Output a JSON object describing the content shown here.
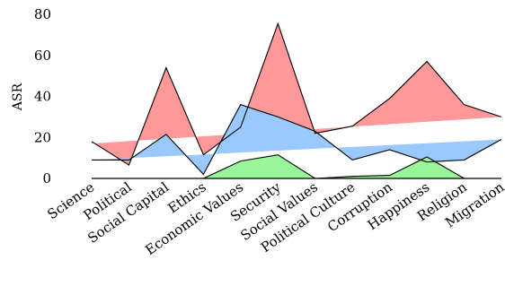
{
  "chart_data": {
    "type": "area",
    "categories": [
      "Science",
      "Political",
      "Social Capital",
      "Ethics",
      "Economic Values",
      "Security",
      "Social Values",
      "Political Culture",
      "Corruption",
      "Happiness",
      "Religion",
      "Migration"
    ],
    "ylabel": "ASR",
    "xlabel": "",
    "title": "",
    "ylim": [
      0,
      80
    ],
    "yticks": [
      0,
      20,
      40,
      60,
      80
    ],
    "grid": false,
    "legend": "none",
    "series": [
      {
        "values": [
          18,
          6.5,
          54,
          11.5,
          25,
          75.5,
          22,
          25.5,
          39,
          57,
          36,
          30
        ],
        "color": "#ff9999",
        "baseline": [
          17,
          30
        ]
      },
      {
        "values": [
          9,
          9,
          21.5,
          2,
          36,
          30,
          23,
          9,
          14,
          8,
          9,
          19
        ],
        "color": "#99c9ff",
        "baseline": [
          9,
          19
        ]
      },
      {
        "values": [
          0,
          0,
          0,
          0,
          8.5,
          11.5,
          0,
          1,
          1.5,
          10.5,
          0,
          0
        ],
        "color": "#99f599",
        "baseline": [
          0,
          0
        ]
      }
    ]
  }
}
